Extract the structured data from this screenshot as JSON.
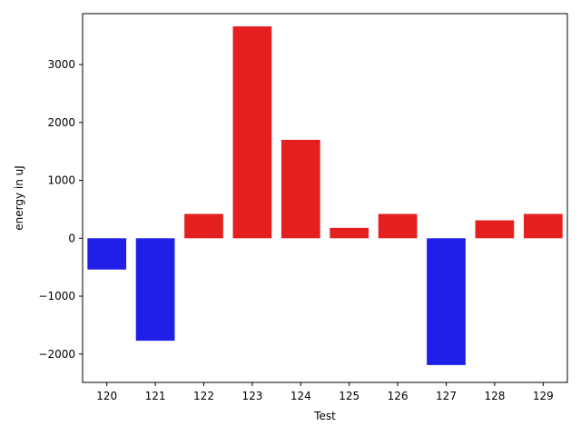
{
  "chart_data": {
    "type": "bar",
    "xlabel": "Test",
    "ylabel": "energy in uJ",
    "categories": [
      "120",
      "121",
      "122",
      "123",
      "124",
      "125",
      "126",
      "127",
      "128",
      "129"
    ],
    "values": [
      -540,
      -1770,
      420,
      3660,
      1700,
      180,
      420,
      -2190,
      310,
      420
    ],
    "ylim": [
      -2490,
      3880
    ],
    "yticks": [
      -2000,
      -1000,
      0,
      1000,
      2000,
      3000
    ],
    "ytick_labels": [
      "−2000",
      "−1000",
      "0",
      "1000",
      "2000",
      "3000"
    ],
    "colors": {
      "positive": "#e41f1f",
      "negative": "#1f1fe8"
    },
    "grid": false,
    "legend": "none"
  }
}
